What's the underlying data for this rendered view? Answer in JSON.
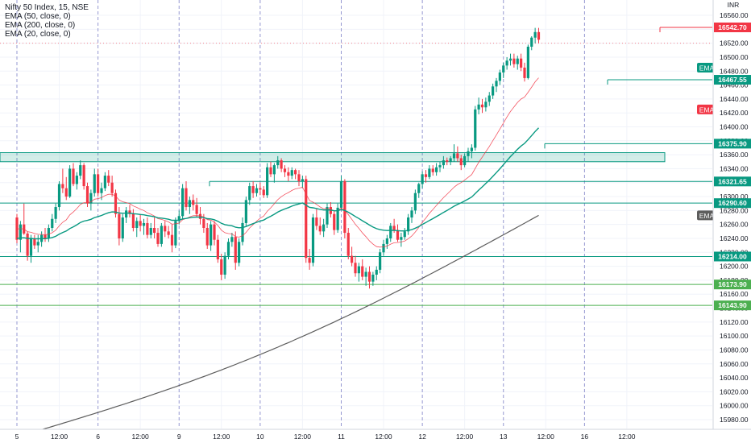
{
  "chart_data": {
    "type": "candlestick",
    "title": "Nifty 50 Index, 15, NSE",
    "currency": "INR",
    "indicators": [
      {
        "name": "EMA (50, close, 0)",
        "color": "#089981"
      },
      {
        "name": "EMA (200, close, 0)",
        "color": "#5d5d5d"
      },
      {
        "name": "EMA (20, close, 0)",
        "color": "#f23645"
      }
    ],
    "y_ticks": [
      16560.0,
      16540.0,
      16520.0,
      16500.0,
      16480.0,
      16460.0,
      16440.0,
      16420.0,
      16400.0,
      16380.0,
      16360.0,
      16340.0,
      16320.0,
      16300.0,
      16280.0,
      16260.0,
      16240.0,
      16220.0,
      16200.0,
      16180.0,
      16160.0,
      16140.0,
      16120.0,
      16100.0,
      16080.0,
      16060.0,
      16040.0,
      16020.0,
      16000.0,
      15980.0
    ],
    "x_labels": [
      "5",
      "12:00",
      "6",
      "12:00",
      "9",
      "12:00",
      "10",
      "12:00",
      "11",
      "12:00",
      "12",
      "12:00",
      "13",
      "12:00",
      "16",
      "12:00"
    ],
    "x_label_bar_index": [
      0,
      12,
      23,
      35,
      46,
      58,
      69,
      81,
      92,
      104,
      115,
      127,
      138,
      150,
      161,
      173
    ],
    "price_labels": [
      {
        "value": "16542.70",
        "color": "#f23645"
      },
      {
        "value": "16467.55",
        "color": "#089981"
      },
      {
        "value": "16375.90",
        "color": "#089981"
      },
      {
        "value": "16321.65",
        "color": "#089981"
      },
      {
        "value": "16290.60",
        "color": "#089981"
      },
      {
        "value": "16214.00",
        "color": "#089981"
      },
      {
        "value": "16173.90",
        "color": "#4caf50"
      },
      {
        "value": "16143.90",
        "color": "#4caf50"
      }
    ],
    "ema_tags": [
      {
        "label": "EMA",
        "value": 16485,
        "color": "#089981"
      },
      {
        "label": "EMA",
        "value": 16425,
        "color": "#f23645"
      },
      {
        "label": "EMA",
        "value": 16273,
        "color": "#5d5d5d"
      }
    ],
    "support_zone": {
      "low": 16350,
      "high": 16363
    },
    "candles": [
      [
        16270,
        16275,
        16233,
        16238
      ],
      [
        16238,
        16265,
        16220,
        16260
      ],
      [
        16260,
        16290,
        16245,
        16247
      ],
      [
        16247,
        16250,
        16208,
        16215
      ],
      [
        16215,
        16245,
        16205,
        16240
      ],
      [
        16240,
        16245,
        16225,
        16230
      ],
      [
        16230,
        16245,
        16220,
        16235
      ],
      [
        16235,
        16250,
        16228,
        16245
      ],
      [
        16245,
        16255,
        16235,
        16240
      ],
      [
        16240,
        16260,
        16235,
        16255
      ],
      [
        16255,
        16275,
        16250,
        16268
      ],
      [
        16268,
        16290,
        16262,
        16285
      ],
      [
        16285,
        16322,
        16280,
        16318
      ],
      [
        16318,
        16340,
        16305,
        16312
      ],
      [
        16312,
        16328,
        16295,
        16300
      ],
      [
        16300,
        16345,
        16298,
        16340
      ],
      [
        16340,
        16348,
        16315,
        16318
      ],
      [
        16318,
        16335,
        16310,
        16330
      ],
      [
        16330,
        16352,
        16325,
        16345
      ],
      [
        16345,
        16348,
        16310,
        16315
      ],
      [
        16315,
        16320,
        16285,
        16290
      ],
      [
        16290,
        16310,
        16280,
        16305
      ],
      [
        16305,
        16340,
        16300,
        16332
      ],
      [
        16332,
        16340,
        16300,
        16305
      ],
      [
        16305,
        16320,
        16295,
        16312
      ],
      [
        16312,
        16335,
        16308,
        16330
      ],
      [
        16330,
        16338,
        16315,
        16320
      ],
      [
        16320,
        16330,
        16300,
        16305
      ],
      [
        16305,
        16310,
        16270,
        16275
      ],
      [
        16275,
        16285,
        16230,
        16240
      ],
      [
        16240,
        16275,
        16235,
        16270
      ],
      [
        16270,
        16285,
        16262,
        16280
      ],
      [
        16280,
        16288,
        16270,
        16275
      ],
      [
        16275,
        16282,
        16250,
        16255
      ],
      [
        16255,
        16270,
        16242,
        16265
      ],
      [
        16265,
        16275,
        16250,
        16258
      ],
      [
        16258,
        16268,
        16245,
        16262
      ],
      [
        16262,
        16270,
        16240,
        16245
      ],
      [
        16245,
        16262,
        16240,
        16255
      ],
      [
        16255,
        16270,
        16240,
        16248
      ],
      [
        16248,
        16255,
        16228,
        16232
      ],
      [
        16232,
        16262,
        16228,
        16258
      ],
      [
        16258,
        16265,
        16242,
        16250
      ],
      [
        16250,
        16258,
        16240,
        16245
      ],
      [
        16245,
        16260,
        16220,
        16230
      ],
      [
        16230,
        16270,
        16226,
        16265
      ],
      [
        16265,
        16280,
        16260,
        16272
      ],
      [
        16272,
        16318,
        16268,
        16312
      ],
      [
        16312,
        16322,
        16280,
        16285
      ],
      [
        16285,
        16300,
        16275,
        16295
      ],
      [
        16295,
        16303,
        16280,
        16288
      ],
      [
        16288,
        16298,
        16270,
        16275
      ],
      [
        16275,
        16285,
        16260,
        16268
      ],
      [
        16268,
        16275,
        16248,
        16255
      ],
      [
        16255,
        16262,
        16225,
        16230
      ],
      [
        16230,
        16265,
        16222,
        16260
      ],
      [
        16260,
        16265,
        16230,
        16238
      ],
      [
        16238,
        16245,
        16205,
        16210
      ],
      [
        16210,
        16218,
        16180,
        16188
      ],
      [
        16188,
        16220,
        16182,
        16215
      ],
      [
        16215,
        16240,
        16210,
        16235
      ],
      [
        16235,
        16248,
        16228,
        16242
      ],
      [
        16242,
        16250,
        16195,
        16205
      ],
      [
        16205,
        16240,
        16200,
        16235
      ],
      [
        16235,
        16270,
        16230,
        16262
      ],
      [
        16262,
        16300,
        16258,
        16295
      ],
      [
        16295,
        16320,
        16288,
        16315
      ],
      [
        16315,
        16322,
        16298,
        16305
      ],
      [
        16305,
        16318,
        16300,
        16312
      ],
      [
        16312,
        16320,
        16302,
        16310
      ],
      [
        16310,
        16315,
        16298,
        16302
      ],
      [
        16302,
        16348,
        16298,
        16342
      ],
      [
        16342,
        16350,
        16328,
        16332
      ],
      [
        16332,
        16348,
        16320,
        16345
      ],
      [
        16345,
        16358,
        16340,
        16352
      ],
      [
        16352,
        16355,
        16335,
        16340
      ],
      [
        16340,
        16345,
        16328,
        16335
      ],
      [
        16335,
        16342,
        16322,
        16330
      ],
      [
        16330,
        16342,
        16325,
        16338
      ],
      [
        16338,
        16340,
        16325,
        16332
      ],
      [
        16332,
        16338,
        16315,
        16322
      ],
      [
        16322,
        16330,
        16312,
        16325
      ],
      [
        16325,
        16330,
        16205,
        16212
      ],
      [
        16212,
        16225,
        16195,
        16205
      ],
      [
        16205,
        16275,
        16200,
        16270
      ],
      [
        16270,
        16282,
        16252,
        16258
      ],
      [
        16258,
        16270,
        16245,
        16250
      ],
      [
        16250,
        16268,
        16242,
        16260
      ],
      [
        16260,
        16290,
        16255,
        16285
      ],
      [
        16285,
        16292,
        16270,
        16275
      ],
      [
        16275,
        16280,
        16245,
        16252
      ],
      [
        16252,
        16290,
        16248,
        16284
      ],
      [
        16284,
        16330,
        16280,
        16322
      ],
      [
        16322,
        16325,
        16240,
        16248
      ],
      [
        16248,
        16255,
        16210,
        16215
      ],
      [
        16215,
        16228,
        16200,
        16205
      ],
      [
        16205,
        16215,
        16185,
        16190
      ],
      [
        16190,
        16205,
        16178,
        16200
      ],
      [
        16200,
        16210,
        16180,
        16185
      ],
      [
        16185,
        16198,
        16172,
        16192
      ],
      [
        16192,
        16200,
        16168,
        16178
      ],
      [
        16178,
        16192,
        16172,
        16188
      ],
      [
        16188,
        16200,
        16180,
        16195
      ],
      [
        16195,
        16225,
        16190,
        16220
      ],
      [
        16220,
        16238,
        16215,
        16232
      ],
      [
        16232,
        16245,
        16225,
        16240
      ],
      [
        16240,
        16262,
        16235,
        16258
      ],
      [
        16258,
        16268,
        16248,
        16252
      ],
      [
        16252,
        16260,
        16235,
        16238
      ],
      [
        16238,
        16248,
        16228,
        16242
      ],
      [
        16242,
        16255,
        16238,
        16250
      ],
      [
        16250,
        16275,
        16245,
        16270
      ],
      [
        16270,
        16285,
        16262,
        16280
      ],
      [
        16280,
        16310,
        16275,
        16305
      ],
      [
        16305,
        16320,
        16298,
        16318
      ],
      [
        16318,
        16336,
        16312,
        16332
      ],
      [
        16332,
        16338,
        16320,
        16328
      ],
      [
        16328,
        16345,
        16325,
        16340
      ],
      [
        16340,
        16345,
        16330,
        16335
      ],
      [
        16335,
        16348,
        16330,
        16342
      ],
      [
        16342,
        16350,
        16335,
        16345
      ],
      [
        16345,
        16358,
        16340,
        16352
      ],
      [
        16352,
        16356,
        16345,
        16350
      ],
      [
        16350,
        16358,
        16345,
        16355
      ],
      [
        16355,
        16375,
        16350,
        16362
      ],
      [
        16362,
        16372,
        16350,
        16355
      ],
      [
        16355,
        16360,
        16338,
        16345
      ],
      [
        16345,
        16362,
        16342,
        16358
      ],
      [
        16358,
        16370,
        16350,
        16365
      ],
      [
        16365,
        16375,
        16355,
        16370
      ],
      [
        16370,
        16430,
        16366,
        16425
      ],
      [
        16425,
        16442,
        16418,
        16432
      ],
      [
        16432,
        16440,
        16420,
        16428
      ],
      [
        16428,
        16442,
        16422,
        16436
      ],
      [
        16436,
        16450,
        16430,
        16445
      ],
      [
        16445,
        16462,
        16440,
        16458
      ],
      [
        16458,
        16470,
        16450,
        16466
      ],
      [
        16466,
        16482,
        16460,
        16478
      ],
      [
        16478,
        16492,
        16470,
        16488
      ],
      [
        16488,
        16500,
        16482,
        16495
      ],
      [
        16495,
        16505,
        16488,
        16498
      ],
      [
        16498,
        16505,
        16485,
        16490
      ],
      [
        16490,
        16502,
        16482,
        16498
      ],
      [
        16498,
        16505,
        16480,
        16485
      ],
      [
        16485,
        16492,
        16465,
        16470
      ],
      [
        16470,
        16518,
        16468,
        16515
      ],
      [
        16515,
        16530,
        16510,
        16528
      ],
      [
        16528,
        16542,
        16520,
        16536
      ],
      [
        16536,
        16542,
        16520,
        16525
      ]
    ]
  }
}
